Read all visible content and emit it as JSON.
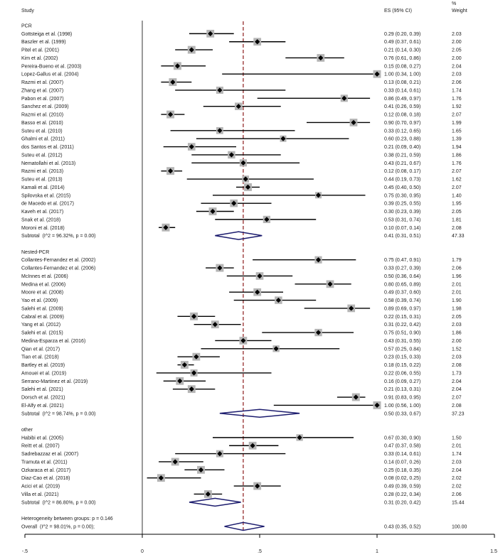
{
  "chart_data": {
    "type": "scatter",
    "header": {
      "study": "Study",
      "es": "ES (95% CI)",
      "weight_pct": "%",
      "weight": "Weight"
    },
    "xlim": [
      -0.5,
      1.5
    ],
    "x_ticks": [
      -0.5,
      0,
      0.5,
      1,
      1.5
    ],
    "x_tick_labels": [
      "-.5",
      "0",
      ".5",
      "1",
      "1.5"
    ],
    "null_line": 0,
    "colors": {
      "marker_box": "#b5b5b5",
      "marker_point": "#000000",
      "ci_line": "#000000",
      "diamond": "#1c1c6e",
      "overall_line": "#8b1a1a"
    },
    "groups": [
      {
        "label": "PCR",
        "studies": [
          {
            "name": "Gottsteiga et al. (1998)",
            "es": 0.29,
            "lo": 0.2,
            "hi": 0.39,
            "ci_label": "0.29 (0.20, 0.39)",
            "weight": "2.03"
          },
          {
            "name": "Baszler et al. (1999)",
            "es": 0.49,
            "lo": 0.37,
            "hi": 0.61,
            "ci_label": "0.49 (0.37, 0.61)",
            "weight": "2.00"
          },
          {
            "name": "Pitel et al. (2001)",
            "es": 0.21,
            "lo": 0.14,
            "hi": 0.3,
            "ci_label": "0.21 (0.14, 0.30)",
            "weight": "2.05"
          },
          {
            "name": "Kim et al. (2002)",
            "es": 0.76,
            "lo": 0.61,
            "hi": 0.86,
            "ci_label": "0.76 (0.61, 0.86)",
            "weight": "2.00"
          },
          {
            "name": "Pereira-Bueno et al. (2003)",
            "es": 0.15,
            "lo": 0.08,
            "hi": 0.27,
            "ci_label": "0.15 (0.08, 0.27)",
            "weight": "2.04"
          },
          {
            "name": "Lopez-Gallus et al. (2004)",
            "es": 1.0,
            "lo": 0.34,
            "hi": 1.0,
            "ci_label": "1.00 (0.34, 1.00)",
            "weight": "2.03"
          },
          {
            "name": "Razmi et al. (2007)",
            "es": 0.13,
            "lo": 0.08,
            "hi": 0.21,
            "ci_label": "0.13 (0.08, 0.21)",
            "weight": "2.06"
          },
          {
            "name": "Zhang et al. (2007)",
            "es": 0.33,
            "lo": 0.14,
            "hi": 0.61,
            "ci_label": "0.33 (0.14, 0.61)",
            "weight": "1.74"
          },
          {
            "name": "Pabon et al. (2007)",
            "es": 0.86,
            "lo": 0.49,
            "hi": 0.97,
            "ci_label": "0.86 (0.49, 0.97)",
            "weight": "1.76"
          },
          {
            "name": "Sanchez et al. (2009)",
            "es": 0.41,
            "lo": 0.26,
            "hi": 0.59,
            "ci_label": "0.41 (0.26, 0.59)",
            "weight": "1.92"
          },
          {
            "name": "Razmi et al. (2010)",
            "es": 0.12,
            "lo": 0.08,
            "hi": 0.18,
            "ci_label": "0.12 (0.08, 0.18)",
            "weight": "2.07"
          },
          {
            "name": "Basso et al. (2010)",
            "es": 0.9,
            "lo": 0.7,
            "hi": 0.97,
            "ci_label": "0.90 (0.70, 0.97)",
            "weight": "1.99"
          },
          {
            "name": "Suteu et al. (2010)",
            "es": 0.33,
            "lo": 0.12,
            "hi": 0.65,
            "ci_label": "0.33 (0.12, 0.65)",
            "weight": "1.65"
          },
          {
            "name": "Ghalmi et al. (2011)",
            "es": 0.6,
            "lo": 0.23,
            "hi": 0.88,
            "ci_label": "0.60 (0.23, 0.88)",
            "weight": "1.39"
          },
          {
            "name": "dos Santos et al. (2011)",
            "es": 0.21,
            "lo": 0.09,
            "hi": 0.4,
            "ci_label": "0.21 (0.09, 0.40)",
            "weight": "1.94"
          },
          {
            "name": "Suteu et al. (2012)",
            "es": 0.38,
            "lo": 0.21,
            "hi": 0.59,
            "ci_label": "0.38 (0.21, 0.59)",
            "weight": "1.86"
          },
          {
            "name": "Nematollahi et al. (2013)",
            "es": 0.43,
            "lo": 0.21,
            "hi": 0.67,
            "ci_label": "0.43 (0.21, 0.67)",
            "weight": "1.76"
          },
          {
            "name": "Razmi et al. (2013)",
            "es": 0.12,
            "lo": 0.08,
            "hi": 0.17,
            "ci_label": "0.12 (0.08, 0.17)",
            "weight": "2.07"
          },
          {
            "name": "Suteu et al. (2013)",
            "es": 0.44,
            "lo": 0.19,
            "hi": 0.73,
            "ci_label": "0.44 (0.19, 0.73)",
            "weight": "1.62"
          },
          {
            "name": "Kamali et al. (2014)",
            "es": 0.45,
            "lo": 0.4,
            "hi": 0.5,
            "ci_label": "0.45 (0.40, 0.50)",
            "weight": "2.07"
          },
          {
            "name": "Spilovska et al. (2015)",
            "es": 0.75,
            "lo": 0.3,
            "hi": 0.95,
            "ci_label": "0.75 (0.30, 0.95)",
            "weight": "1.40"
          },
          {
            "name": "de Macedo et al. (2017)",
            "es": 0.39,
            "lo": 0.25,
            "hi": 0.55,
            "ci_label": "0.39 (0.25, 0.55)",
            "weight": "1.95"
          },
          {
            "name": "Kaveh et al. (2017)",
            "es": 0.3,
            "lo": 0.23,
            "hi": 0.39,
            "ci_label": "0.30 (0.23, 0.39)",
            "weight": "2.05"
          },
          {
            "name": "Snak et al. (2018)",
            "es": 0.53,
            "lo": 0.31,
            "hi": 0.74,
            "ci_label": "0.53 (0.31, 0.74)",
            "weight": "1.81"
          },
          {
            "name": "Moroni et al. (2018)",
            "es": 0.1,
            "lo": 0.07,
            "hi": 0.14,
            "ci_label": "0.10 (0.07, 0.14)",
            "weight": "2.08"
          }
        ],
        "subtotal": {
          "label": "Subtotal  (I^2 = 96.32%, p = 0.00)",
          "es": 0.41,
          "lo": 0.31,
          "hi": 0.51,
          "ci_label": "0.41 (0.31, 0.51)",
          "weight": "47.33"
        }
      },
      {
        "label": "Nested-PCR",
        "studies": [
          {
            "name": "Collantes-Fernandez et al. (2002)",
            "es": 0.75,
            "lo": 0.47,
            "hi": 0.91,
            "ci_label": "0.75 (0.47, 0.91)",
            "weight": "1.79"
          },
          {
            "name": "Collantes-Fernandez et al. (2006)",
            "es": 0.33,
            "lo": 0.27,
            "hi": 0.39,
            "ci_label": "0.33 (0.27, 0.39)",
            "weight": "2.06"
          },
          {
            "name": "McInnes et al. (2006)",
            "es": 0.5,
            "lo": 0.36,
            "hi": 0.64,
            "ci_label": "0.50 (0.36, 0.64)",
            "weight": "1.96"
          },
          {
            "name": "Medina et al. (2006)",
            "es": 0.8,
            "lo": 0.65,
            "hi": 0.89,
            "ci_label": "0.80 (0.65, 0.89)",
            "weight": "2.01"
          },
          {
            "name": "Moore et al. (2008)",
            "es": 0.49,
            "lo": 0.37,
            "hi": 0.6,
            "ci_label": "0.49 (0.37, 0.60)",
            "weight": "2.01"
          },
          {
            "name": "Yao et al. (2009)",
            "es": 0.58,
            "lo": 0.39,
            "hi": 0.74,
            "ci_label": "0.58 (0.39, 0.74)",
            "weight": "1.90"
          },
          {
            "name": "Salehi et al. (2009)",
            "es": 0.89,
            "lo": 0.69,
            "hi": 0.97,
            "ci_label": "0.89 (0.69, 0.97)",
            "weight": "1.98"
          },
          {
            "name": "Cabral et al. (2009)",
            "es": 0.22,
            "lo": 0.15,
            "hi": 0.31,
            "ci_label": "0.22 (0.15, 0.31)",
            "weight": "2.05"
          },
          {
            "name": "Yang et al. (2012)",
            "es": 0.31,
            "lo": 0.22,
            "hi": 0.42,
            "ci_label": "0.31 (0.22, 0.42)",
            "weight": "2.03"
          },
          {
            "name": "Salehi et al. (2015)",
            "es": 0.75,
            "lo": 0.51,
            "hi": 0.9,
            "ci_label": "0.75 (0.51, 0.90)",
            "weight": "1.86"
          },
          {
            "name": "Medina-Esparza et al. (2016)",
            "es": 0.43,
            "lo": 0.31,
            "hi": 0.55,
            "ci_label": "0.43 (0.31, 0.55)",
            "weight": "2.00"
          },
          {
            "name": "Qian et al. (2017)",
            "es": 0.57,
            "lo": 0.25,
            "hi": 0.84,
            "ci_label": "0.57 (0.25, 0.84)",
            "weight": "1.52"
          },
          {
            "name": "Tian et al. (2018)",
            "es": 0.23,
            "lo": 0.15,
            "hi": 0.33,
            "ci_label": "0.23 (0.15, 0.33)",
            "weight": "2.03"
          },
          {
            "name": "Bartley et al. (2019)",
            "es": 0.18,
            "lo": 0.15,
            "hi": 0.22,
            "ci_label": "0.18 (0.15, 0.22)",
            "weight": "2.08"
          },
          {
            "name": "Amouei et al. (2019)",
            "es": 0.22,
            "lo": 0.06,
            "hi": 0.55,
            "ci_label": "0.22 (0.06, 0.55)",
            "weight": "1.73"
          },
          {
            "name": "Serrano-Martinez et al. (2019)",
            "es": 0.16,
            "lo": 0.09,
            "hi": 0.27,
            "ci_label": "0.16 (0.09, 0.27)",
            "weight": "2.04"
          },
          {
            "name": "Salehi et al. (2021)",
            "es": 0.21,
            "lo": 0.13,
            "hi": 0.31,
            "ci_label": "0.21 (0.13, 0.31)",
            "weight": "2.04"
          },
          {
            "name": "Dorsch et al. (2021)",
            "es": 0.91,
            "lo": 0.83,
            "hi": 0.95,
            "ci_label": "0.91 (0.83, 0.95)",
            "weight": "2.07"
          },
          {
            "name": "El-Alfy et al. (2021)",
            "es": 1.0,
            "lo": 0.56,
            "hi": 1.0,
            "ci_label": "1.00 (0.56, 1.00)",
            "weight": "2.08"
          }
        ],
        "subtotal": {
          "label": "Subtotal  (I^2 = 98.74%, p = 0.00)",
          "es": 0.5,
          "lo": 0.33,
          "hi": 0.67,
          "ci_label": "0.50 (0.33, 0.67)",
          "weight": "37.23"
        }
      },
      {
        "label": "other",
        "studies": [
          {
            "name": "Habibi et al. (2005)",
            "es": 0.67,
            "lo": 0.3,
            "hi": 0.9,
            "ci_label": "0.67 (0.30, 0.90)",
            "weight": "1.50"
          },
          {
            "name": "Reitt et al. (2007)",
            "es": 0.47,
            "lo": 0.37,
            "hi": 0.58,
            "ci_label": "0.47 (0.37, 0.58)",
            "weight": "2.01"
          },
          {
            "name": "Sadrebazzaz et al. (2007)",
            "es": 0.33,
            "lo": 0.14,
            "hi": 0.61,
            "ci_label": "0.33 (0.14, 0.61)",
            "weight": "1.74"
          },
          {
            "name": "Tramuta et al. (2011)",
            "es": 0.14,
            "lo": 0.07,
            "hi": 0.26,
            "ci_label": "0.14 (0.07, 0.26)",
            "weight": "2.03"
          },
          {
            "name": "Ozkaraca et al. (2017)",
            "es": 0.25,
            "lo": 0.18,
            "hi": 0.35,
            "ci_label": "0.25 (0.18, 0.35)",
            "weight": "2.04"
          },
          {
            "name": "Diaz-Cao et al. (2018)",
            "es": 0.08,
            "lo": 0.02,
            "hi": 0.25,
            "ci_label": "0.08 (0.02, 0.25)",
            "weight": "2.02"
          },
          {
            "name": "Acici et al. (2019)",
            "es": 0.49,
            "lo": 0.39,
            "hi": 0.59,
            "ci_label": "0.49 (0.39, 0.59)",
            "weight": "2.02"
          },
          {
            "name": "Villa et al. (2021)",
            "es": 0.28,
            "lo": 0.22,
            "hi": 0.34,
            "ci_label": "0.28 (0.22, 0.34)",
            "weight": "2.06"
          }
        ],
        "subtotal": {
          "label": "Subtotal  (I^2 = 86.80%, p = 0.00)",
          "es": 0.31,
          "lo": 0.2,
          "hi": 0.42,
          "ci_label": "0.31 (0.20, 0.42)",
          "weight": "15.44"
        }
      }
    ],
    "heterogeneity": "Heterogeneity between groups: p = 0.146",
    "overall": {
      "label": "Overall  (I^2 = 98.01%, p = 0.00);",
      "es": 0.43,
      "lo": 0.35,
      "hi": 0.52,
      "ci_label": "0.43 (0.35, 0.52)",
      "weight": "100.00"
    }
  }
}
